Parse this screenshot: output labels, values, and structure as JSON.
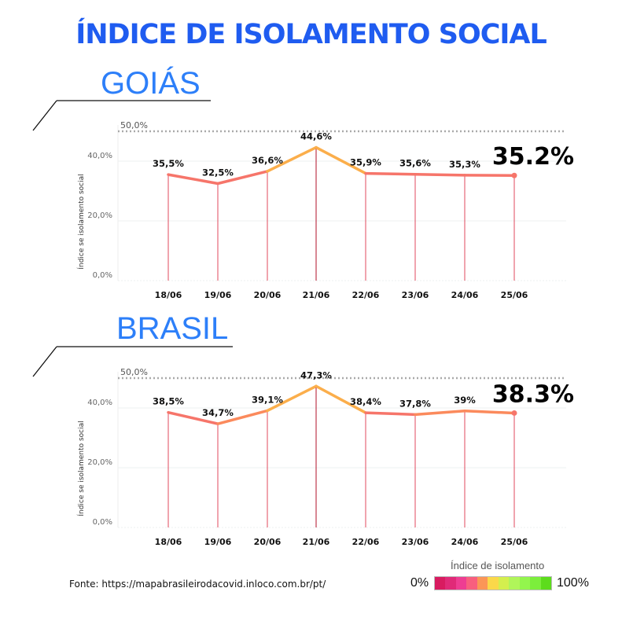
{
  "title": "ÍNDICE DE ISOLAMENTO SOCIAL",
  "source": "Fonte: https://mapabrasileirodacovid.inloco.com.br/pt/",
  "legend": {
    "title": "Índice de isolamento",
    "min_label": "0%",
    "max_label": "100%",
    "colors": [
      "#d81b60",
      "#e02a78",
      "#ee3d92",
      "#f85f7e",
      "#fb9657",
      "#fbd84a",
      "#d4ef4e",
      "#b0f55a",
      "#93f54d",
      "#7cee3c",
      "#5ddc1c"
    ]
  },
  "chart_data": [
    {
      "type": "line",
      "title": "GOIÁS",
      "ylabel": "Índice se isolamento social",
      "ylim": [
        0,
        50
      ],
      "yticks": [
        "0,0%",
        "20,0%",
        "40,0%"
      ],
      "yticks_values": [
        0,
        20,
        40
      ],
      "reference_label": "50,0%",
      "reference_value": 50,
      "categories": [
        "18/06",
        "19/06",
        "20/06",
        "21/06",
        "22/06",
        "23/06",
        "24/06",
        "25/06"
      ],
      "values": [
        35.5,
        32.5,
        36.6,
        44.6,
        35.9,
        35.6,
        35.3,
        35.2
      ],
      "labels": [
        "35,5%",
        "32,5%",
        "36,6%",
        "44,6%",
        "35,9%",
        "35,6%",
        "35,3%",
        ""
      ],
      "highlight": "35.2%"
    },
    {
      "type": "line",
      "title": "BRASIL",
      "ylabel": "Índice se isolamento social",
      "ylim": [
        0,
        50
      ],
      "yticks": [
        "0,0%",
        "20,0%",
        "40,0%"
      ],
      "yticks_values": [
        0,
        20,
        40
      ],
      "reference_label": "50,0%",
      "reference_value": 50,
      "categories": [
        "18/06",
        "19/06",
        "20/06",
        "21/06",
        "22/06",
        "23/06",
        "24/06",
        "25/06"
      ],
      "values": [
        38.5,
        34.7,
        39.1,
        47.3,
        38.4,
        37.8,
        39,
        38.3
      ],
      "labels": [
        "38,5%",
        "34,7%",
        "39,1%",
        "47,3%",
        "38,4%",
        "37,8%",
        "39%",
        ""
      ],
      "highlight": "38.3%"
    }
  ]
}
